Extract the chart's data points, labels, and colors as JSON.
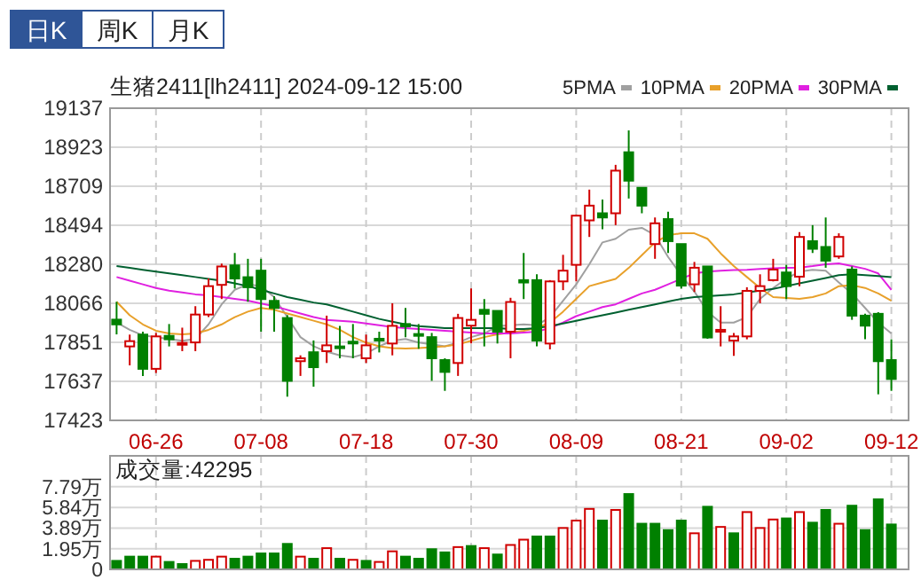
{
  "chart_data": [
    {
      "type": "candlestick",
      "title": "生猪2411[lh2411] 2024-09-12 15:00",
      "annotations": [
        "日K",
        "周K",
        "月K"
      ],
      "categories": [
        null,
        null,
        null,
        "06-26",
        null,
        null,
        null,
        null,
        null,
        null,
        null,
        "07-08",
        null,
        null,
        null,
        null,
        null,
        null,
        null,
        "07-18",
        null,
        null,
        null,
        null,
        null,
        null,
        null,
        "07-30",
        null,
        null,
        null,
        null,
        null,
        null,
        null,
        "08-09",
        null,
        null,
        null,
        null,
        null,
        null,
        null,
        "08-21",
        null,
        null,
        null,
        null,
        null,
        null,
        null,
        "09-02",
        null,
        null,
        null,
        null,
        null,
        null,
        null,
        "09-12"
      ],
      "ohlc": [
        [
          17976,
          18074,
          17895,
          17950
        ],
        [
          17829,
          17894,
          17725,
          17858
        ],
        [
          17894,
          17910,
          17667,
          17706
        ],
        [
          17706,
          17903,
          17683,
          17884
        ],
        [
          17887,
          17952,
          17829,
          17868
        ],
        [
          17842,
          17932,
          17803,
          17848
        ],
        [
          17851,
          18050,
          17803,
          18004
        ],
        [
          18004,
          18202,
          17990,
          18160
        ],
        [
          18167,
          18284,
          18089,
          18268
        ],
        [
          18274,
          18342,
          18147,
          18202
        ],
        [
          18209,
          18310,
          18074,
          18154
        ],
        [
          18245,
          18310,
          17910,
          18089
        ],
        [
          18079,
          18105,
          17910,
          18040
        ],
        [
          17985,
          18001,
          17553,
          17640
        ],
        [
          17748,
          17780,
          17667,
          17764
        ],
        [
          17797,
          17862,
          17608,
          17715
        ],
        [
          17803,
          17998,
          17738,
          17835
        ],
        [
          17829,
          17942,
          17764,
          17822
        ],
        [
          17855,
          17952,
          17764,
          17848
        ],
        [
          17764,
          17894,
          17738,
          17835
        ],
        [
          17871,
          17910,
          17796,
          17864
        ],
        [
          17845,
          18066,
          17780,
          17942
        ],
        [
          17952,
          18040,
          17880,
          17939
        ],
        [
          17897,
          17952,
          17816,
          17890
        ],
        [
          17880,
          17903,
          17640,
          17764
        ],
        [
          17754,
          17764,
          17585,
          17689
        ],
        [
          17738,
          18008,
          17667,
          17985
        ],
        [
          17943,
          18147,
          17845,
          17975
        ],
        [
          18030,
          18089,
          17829,
          18008
        ],
        [
          18024,
          18024,
          17845,
          17910
        ],
        [
          17910,
          18096,
          17764,
          18073
        ],
        [
          18193,
          18342,
          18089,
          18180
        ],
        [
          18193,
          18225,
          17829,
          17861
        ],
        [
          17845,
          18193,
          17813,
          18186
        ],
        [
          18186,
          18332,
          18138,
          18245
        ],
        [
          18277,
          18553,
          18186,
          18547
        ],
        [
          18521,
          18690,
          18430,
          18602
        ],
        [
          18560,
          18635,
          18472,
          18537
        ],
        [
          18560,
          18826,
          18495,
          18794
        ],
        [
          18895,
          19015,
          18641,
          18739
        ],
        [
          18700,
          18700,
          18560,
          18602
        ],
        [
          18391,
          18537,
          18310,
          18505
        ],
        [
          18528,
          18569,
          18342,
          18407
        ],
        [
          18391,
          18391,
          18147,
          18163
        ],
        [
          18170,
          18293,
          18128,
          18261
        ],
        [
          18268,
          18268,
          17871,
          17878
        ],
        [
          17910,
          18050,
          17829,
          17920
        ],
        [
          17861,
          17903,
          17777,
          17884
        ],
        [
          17884,
          18154,
          17868,
          18134
        ],
        [
          18134,
          18225,
          18066,
          18160
        ],
        [
          18193,
          18310,
          18186,
          18251
        ],
        [
          18235,
          18277,
          18089,
          18160
        ],
        [
          18212,
          18456,
          18160,
          18430
        ],
        [
          18407,
          18495,
          18342,
          18365
        ],
        [
          18375,
          18537,
          18261,
          18300
        ],
        [
          18323,
          18450,
          18310,
          18430
        ],
        [
          18251,
          18268,
          17975,
          17998
        ],
        [
          17998,
          18008,
          17868,
          17943
        ],
        [
          18008,
          18017,
          17566,
          17748
        ],
        [
          17754,
          17868,
          17585,
          17650
        ]
      ],
      "series": [
        {
          "name": "5PMA",
          "type": "line",
          "color": "#a0a0a0",
          "values": [
            17960,
            17920,
            17890,
            17880,
            17870,
            17860,
            17870,
            17950,
            18060,
            18140,
            18170,
            18160,
            18100,
            17990,
            17880,
            17830,
            17800,
            17780,
            17770,
            17790,
            17830,
            17860,
            17870,
            17850,
            17840,
            17830,
            17850,
            17880,
            17900,
            17940,
            17945,
            17950,
            17945,
            17990,
            18080,
            18170,
            18280,
            18400,
            18420,
            18470,
            18480,
            18440,
            18320,
            18220,
            18130,
            18020,
            17960,
            17960,
            17990,
            18090,
            18150,
            18200,
            18240,
            18250,
            18245,
            18180,
            18120,
            18040,
            17960,
            17900
          ]
        },
        {
          "name": "10PMA",
          "type": "line",
          "color": "#e8a02a",
          "values": [
            18074,
            18000,
            17950,
            17915,
            17900,
            17895,
            17900,
            17920,
            17950,
            17990,
            18020,
            18040,
            18030,
            18010,
            17990,
            17970,
            17950,
            17920,
            17880,
            17850,
            17830,
            17820,
            17818,
            17820,
            17825,
            17830,
            17840,
            17860,
            17880,
            17895,
            17905,
            17915,
            17930,
            17960,
            18020,
            18090,
            18160,
            18180,
            18200,
            18260,
            18330,
            18400,
            18440,
            18450,
            18450,
            18420,
            18340,
            18270,
            18210,
            18150,
            18100,
            18095,
            18090,
            18100,
            18120,
            18160,
            18165,
            18150,
            18120,
            18080
          ]
        },
        {
          "name": "20PMA",
          "type": "line",
          "color": "#e020e0",
          "values": [
            18210,
            18190,
            18170,
            18150,
            18135,
            18125,
            18115,
            18110,
            18100,
            18090,
            18080,
            18065,
            18050,
            18030,
            18010,
            17990,
            17975,
            17970,
            17965,
            17955,
            17945,
            17935,
            17930,
            17925,
            17920,
            17915,
            17910,
            17905,
            17900,
            17900,
            17900,
            17905,
            17910,
            17930,
            17960,
            17995,
            18020,
            18045,
            18060,
            18090,
            18120,
            18140,
            18170,
            18200,
            18230,
            18240,
            18245,
            18248,
            18250,
            18255,
            18258,
            18260,
            18262,
            18270,
            18280,
            18285,
            18270,
            18255,
            18230,
            18140
          ]
        },
        {
          "name": "30PMA",
          "type": "line",
          "color": "#006030",
          "values": [
            18270,
            18260,
            18250,
            18240,
            18230,
            18220,
            18210,
            18200,
            18190,
            18175,
            18160,
            18140,
            18120,
            18100,
            18085,
            18070,
            18060,
            18040,
            18020,
            18000,
            17980,
            17965,
            17950,
            17940,
            17935,
            17930,
            17930,
            17930,
            17930,
            17930,
            17925,
            17925,
            17930,
            17940,
            17955,
            17970,
            17985,
            18000,
            18015,
            18030,
            18045,
            18060,
            18075,
            18090,
            18100,
            18105,
            18110,
            18115,
            18125,
            18135,
            18145,
            18160,
            18175,
            18190,
            18205,
            18220,
            18225,
            18220,
            18215,
            18210
          ]
        }
      ],
      "ylim": [
        17423,
        19137
      ],
      "yticks": [
        17423,
        17637,
        17851,
        18066,
        18280,
        18494,
        18709,
        18923,
        19137
      ],
      "grid": true,
      "legend": "top right"
    },
    {
      "type": "bar",
      "title": "成交量:42295",
      "tick_labels": "y",
      "categories": [
        null,
        null,
        null,
        null,
        null,
        null,
        null,
        null,
        null,
        null,
        null,
        null,
        null,
        null,
        null,
        null,
        null,
        null,
        null,
        null,
        null,
        null,
        null,
        null,
        null,
        null,
        null,
        null,
        null,
        null,
        null,
        null,
        null,
        null,
        null,
        null,
        null,
        null,
        null,
        null,
        null,
        null,
        null,
        null,
        null,
        null,
        null,
        null,
        null,
        null,
        null,
        null,
        null,
        null,
        null,
        null,
        null,
        null,
        null,
        null
      ],
      "values": [
        0.8,
        1.2,
        1.2,
        1.2,
        0.7,
        0.5,
        0.8,
        0.9,
        1.2,
        1,
        1.2,
        1.5,
        1.5,
        2.4,
        1.2,
        1,
        2,
        1,
        0.9,
        0.8,
        0.7,
        1.7,
        1.2,
        1,
        1.9,
        1.6,
        2.1,
        2.2,
        2,
        1.4,
        2.3,
        2.8,
        3.1,
        3.1,
        3.9,
        4.6,
        5.7,
        4.6,
        5.6,
        7.1,
        4.3,
        4.3,
        3.7,
        4.6,
        3.4,
        5.9,
        4,
        3.4,
        5.4,
        3.9,
        4.7,
        4.8,
        5.4,
        4.4,
        5.6,
        4.3,
        6,
        3.7,
        6.6,
        4.2295
      ],
      "colors": [
        "#008000",
        "#008000",
        "#008000",
        "#d00000",
        "#008000",
        "#008000",
        "#d00000",
        "#d00000",
        "#d00000",
        "#008000",
        "#008000",
        "#008000",
        "#008000",
        "#008000",
        "#d00000",
        "#008000",
        "#d00000",
        "#008000",
        "#d00000",
        "#008000",
        "#d00000",
        "#d00000",
        "#008000",
        "#008000",
        "#008000",
        "#008000",
        "#d00000",
        "#008000",
        "#d00000",
        "#008000",
        "#d00000",
        "#d00000",
        "#008000",
        "#008000",
        "#d00000",
        "#d00000",
        "#d00000",
        "#008000",
        "#d00000",
        "#008000",
        "#008000",
        "#008000",
        "#008000",
        "#008000",
        "#d00000",
        "#008000",
        "#d00000",
        "#008000",
        "#d00000",
        "#d00000",
        "#d00000",
        "#008000",
        "#d00000",
        "#008000",
        "#008000",
        "#d00000",
        "#008000",
        "#008000",
        "#008000",
        "#008000"
      ],
      "ylim": [
        0,
        10.7
      ],
      "yticks": [
        {
          "value": 0,
          "label": "0"
        },
        {
          "value": 1.95,
          "label": "1.95万"
        },
        {
          "value": 3.89,
          "label": "3.89万"
        },
        {
          "value": 5.84,
          "label": "5.84万"
        },
        {
          "value": 7.79,
          "label": "7.79万"
        }
      ],
      "grid": true
    }
  ]
}
